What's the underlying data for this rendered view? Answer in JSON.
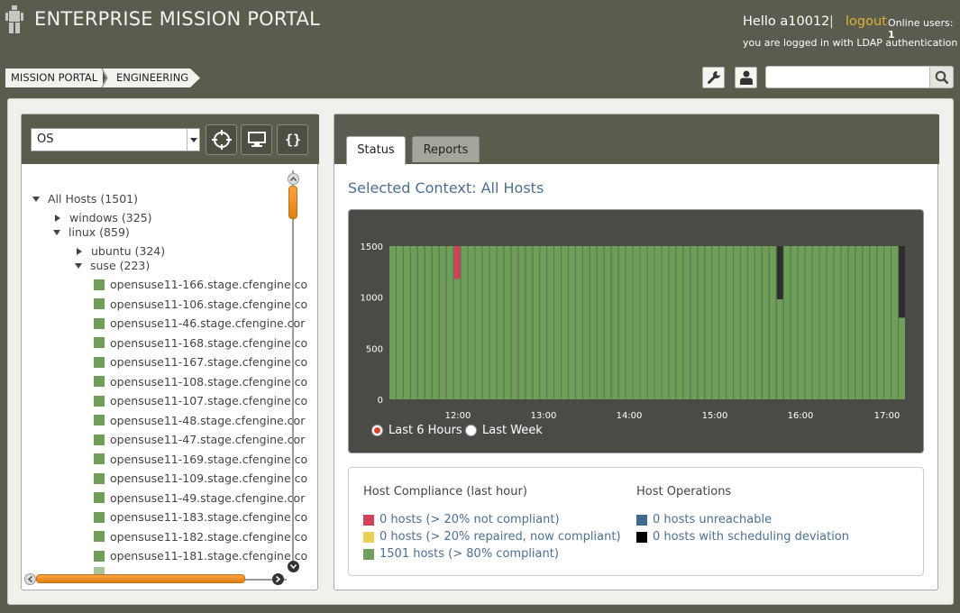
{
  "header": {
    "title": "ENTERPRISE MISSION PORTAL",
    "hello": "Hello a10012",
    "separator": "|",
    "logout_label": "logout",
    "online_label": "Online users:",
    "online_count": "1",
    "auth_text": "you are logged in with LDAP authentication"
  },
  "breadcrumb": {
    "items": [
      "MISSION PORTAL",
      "ENGINEERING"
    ]
  },
  "search": {
    "value": "",
    "placeholder": ""
  },
  "left_panel": {
    "selector_value": "OS",
    "tree": {
      "root": "All Hosts (1501)",
      "windows": "windows (325)",
      "linux": "linux (859)",
      "ubuntu": "ubuntu (324)",
      "suse": "suse (223)",
      "hosts": [
        "opensuse11-166.stage.cfengine.co",
        "opensuse11-106.stage.cfengine.co",
        "opensuse11-46.stage.cfengine.cor",
        "opensuse11-168.stage.cfengine.co",
        "opensuse11-167.stage.cfengine.co",
        "opensuse11-108.stage.cfengine.co",
        "opensuse11-107.stage.cfengine.co",
        "opensuse11-48.stage.cfengine.cor",
        "opensuse11-47.stage.cfengine.cor",
        "opensuse11-169.stage.cfengine.co",
        "opensuse11-109.stage.cfengine.co",
        "opensuse11-49.stage.cfengine.cor",
        "opensuse11-183.stage.cfengine.co",
        "opensuse11-182.stage.cfengine.co",
        "opensuse11-181.stage.cfengine.co"
      ]
    }
  },
  "right_panel": {
    "tabs": [
      {
        "label": "Status"
      },
      {
        "label": "Reports"
      }
    ],
    "context_title": "Selected Context: All Hosts",
    "radio": {
      "last6": "Last 6 Hours",
      "lastweek": "Last Week"
    },
    "compliance": {
      "heading": "Host Compliance (last hour)",
      "items": [
        {
          "label": "0 hosts (> 20% not compliant)",
          "color": "#d2405a"
        },
        {
          "label": "0 hosts (> 20% repaired, now compliant)",
          "color": "#ebcf55"
        },
        {
          "label": "1501 hosts (> 80% compliant)",
          "color": "#6f9e5a"
        }
      ]
    },
    "operations": {
      "heading": "Host Operations",
      "items": [
        {
          "label": "0 hosts unreachable",
          "color": "#3f6a8e"
        },
        {
          "label": "0 hosts with scheduling deviation",
          "color": "#000000"
        }
      ]
    }
  },
  "chart_data": {
    "type": "bar",
    "stacked": true,
    "ylim": [
      0,
      1500
    ],
    "yticks": [
      "0",
      "500",
      "1000",
      "1500"
    ],
    "xticks": [
      "12:00",
      "13:00",
      "14:00",
      "15:00",
      "16:00",
      "17:00"
    ],
    "bar_count": 72,
    "total": 1500,
    "series": [
      {
        "name": "compliant",
        "color": "#6f9e5a"
      },
      {
        "name": "not compliant",
        "color": "#d2405a"
      },
      {
        "name": "scheduling deviation",
        "color": "#2e2e2e"
      }
    ],
    "overrides": [
      {
        "index": 9,
        "compliant": 1180,
        "not_compliant": 320
      },
      {
        "index": 54,
        "compliant": 980,
        "deviation": 520
      },
      {
        "index": 71,
        "compliant": 800,
        "deviation": 700
      }
    ]
  }
}
